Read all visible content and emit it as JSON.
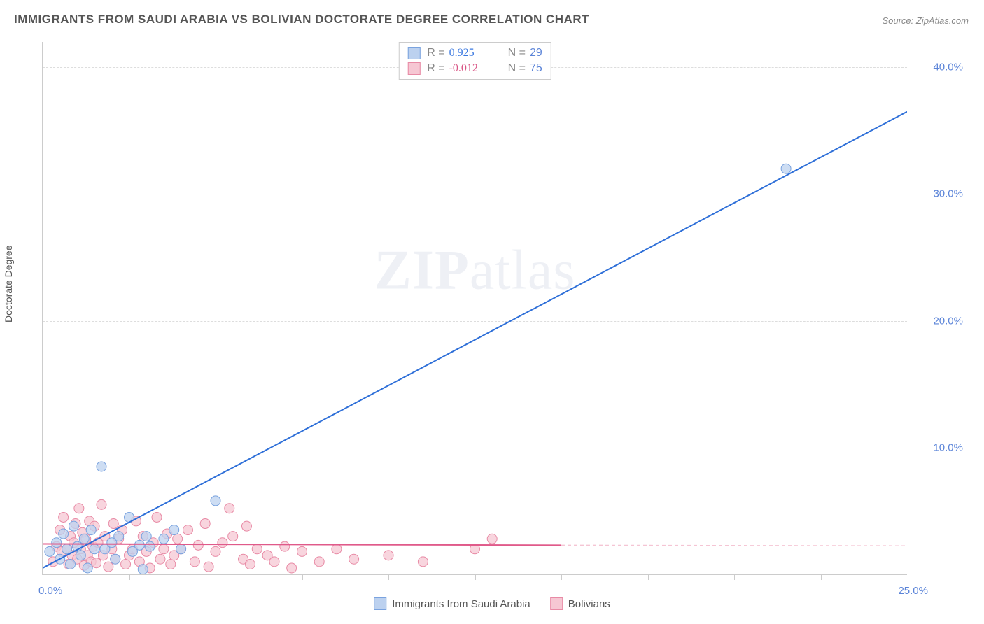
{
  "title": "IMMIGRANTS FROM SAUDI ARABIA VS BOLIVIAN DOCTORATE DEGREE CORRELATION CHART",
  "source_prefix": "Source: ",
  "source_name": "ZipAtlas.com",
  "y_axis_label": "Doctorate Degree",
  "watermark_zip": "ZIP",
  "watermark_atlas": "atlas",
  "chart": {
    "type": "scatter",
    "xlim": [
      0,
      25
    ],
    "ylim": [
      0,
      42
    ],
    "x_unit": "%",
    "y_unit": "%",
    "y_ticks": [
      10.0,
      20.0,
      30.0,
      40.0
    ],
    "x_ticks_minor": [
      2.5,
      5,
      7.5,
      10,
      12.5,
      15,
      17.5,
      20,
      22.5
    ],
    "x_min_label": "0.0%",
    "x_max_label": "25.0%",
    "background_color": "#ffffff",
    "grid_color": "#dddddd",
    "axis_color": "#cccccc",
    "tick_label_color": "#5b84d8",
    "series": [
      {
        "name": "Immigrants from Saudi Arabia",
        "color_fill": "#bcd1ef",
        "color_stroke": "#7aa3df",
        "marker_radius": 7,
        "r_value": 0.925,
        "n_value": 29,
        "r_color": "#3a78e0",
        "trend": {
          "x1": 0,
          "y1": 0.5,
          "x2": 25,
          "y2": 36.5,
          "color": "#2e6fd8",
          "width": 2
        },
        "points": [
          [
            0.2,
            1.8
          ],
          [
            0.4,
            2.5
          ],
          [
            0.5,
            1.2
          ],
          [
            0.6,
            3.2
          ],
          [
            0.7,
            2.0
          ],
          [
            0.8,
            0.8
          ],
          [
            0.9,
            3.8
          ],
          [
            1.0,
            2.2
          ],
          [
            1.1,
            1.5
          ],
          [
            1.2,
            2.8
          ],
          [
            1.3,
            0.5
          ],
          [
            1.4,
            3.5
          ],
          [
            1.5,
            2.0
          ],
          [
            1.7,
            8.5
          ],
          [
            1.8,
            2.0
          ],
          [
            2.0,
            2.5
          ],
          [
            2.1,
            1.2
          ],
          [
            2.2,
            3.0
          ],
          [
            2.5,
            4.5
          ],
          [
            2.6,
            1.8
          ],
          [
            2.8,
            2.3
          ],
          [
            2.9,
            0.4
          ],
          [
            3.0,
            3.0
          ],
          [
            3.1,
            2.2
          ],
          [
            3.5,
            2.8
          ],
          [
            3.8,
            3.5
          ],
          [
            4.0,
            2.0
          ],
          [
            5.0,
            5.8
          ],
          [
            21.5,
            32.0
          ]
        ]
      },
      {
        "name": "Bolivians",
        "color_fill": "#f6c7d3",
        "color_stroke": "#e88aa5",
        "marker_radius": 7,
        "r_value": -0.012,
        "n_value": 75,
        "r_color": "#d95585",
        "trend": {
          "x1": 0,
          "y1": 2.4,
          "x2": 15,
          "y2": 2.3,
          "color": "#e05a8a",
          "width": 2
        },
        "trend_ext": {
          "x1": 15,
          "y1": 2.3,
          "x2": 25,
          "y2": 2.25,
          "color": "#f5c5d4",
          "width": 1.5,
          "dash": "5,4"
        },
        "points": [
          [
            0.3,
            1.0
          ],
          [
            0.4,
            2.2
          ],
          [
            0.5,
            3.5
          ],
          [
            0.55,
            1.8
          ],
          [
            0.6,
            4.5
          ],
          [
            0.7,
            2.0
          ],
          [
            0.75,
            0.8
          ],
          [
            0.8,
            3.0
          ],
          [
            0.85,
            1.5
          ],
          [
            0.9,
            2.5
          ],
          [
            0.95,
            4.0
          ],
          [
            1.0,
            1.2
          ],
          [
            1.05,
            5.2
          ],
          [
            1.1,
            2.0
          ],
          [
            1.15,
            3.3
          ],
          [
            1.2,
            0.7
          ],
          [
            1.25,
            2.8
          ],
          [
            1.3,
            1.5
          ],
          [
            1.35,
            4.2
          ],
          [
            1.4,
            1.0
          ],
          [
            1.45,
            2.2
          ],
          [
            1.5,
            3.8
          ],
          [
            1.55,
            0.9
          ],
          [
            1.6,
            2.5
          ],
          [
            1.7,
            5.5
          ],
          [
            1.75,
            1.5
          ],
          [
            1.8,
            3.0
          ],
          [
            1.9,
            0.6
          ],
          [
            2.0,
            2.0
          ],
          [
            2.05,
            4.0
          ],
          [
            2.1,
            1.2
          ],
          [
            2.2,
            2.8
          ],
          [
            2.3,
            3.5
          ],
          [
            2.4,
            0.8
          ],
          [
            2.5,
            1.5
          ],
          [
            2.6,
            2.0
          ],
          [
            2.7,
            4.2
          ],
          [
            2.8,
            1.0
          ],
          [
            2.9,
            3.0
          ],
          [
            3.0,
            1.8
          ],
          [
            3.1,
            0.5
          ],
          [
            3.2,
            2.5
          ],
          [
            3.3,
            4.5
          ],
          [
            3.4,
            1.2
          ],
          [
            3.5,
            2.0
          ],
          [
            3.6,
            3.2
          ],
          [
            3.7,
            0.8
          ],
          [
            3.8,
            1.5
          ],
          [
            3.9,
            2.8
          ],
          [
            4.0,
            2.0
          ],
          [
            4.2,
            3.5
          ],
          [
            4.4,
            1.0
          ],
          [
            4.5,
            2.3
          ],
          [
            4.7,
            4.0
          ],
          [
            4.8,
            0.6
          ],
          [
            5.0,
            1.8
          ],
          [
            5.2,
            2.5
          ],
          [
            5.4,
            5.2
          ],
          [
            5.5,
            3.0
          ],
          [
            5.8,
            1.2
          ],
          [
            5.9,
            3.8
          ],
          [
            6.0,
            0.8
          ],
          [
            6.2,
            2.0
          ],
          [
            6.5,
            1.5
          ],
          [
            6.7,
            1.0
          ],
          [
            7.0,
            2.2
          ],
          [
            7.2,
            0.5
          ],
          [
            7.5,
            1.8
          ],
          [
            8.0,
            1.0
          ],
          [
            8.5,
            2.0
          ],
          [
            9.0,
            1.2
          ],
          [
            10.0,
            1.5
          ],
          [
            11.0,
            1.0
          ],
          [
            12.5,
            2.0
          ],
          [
            13.0,
            2.8
          ]
        ]
      }
    ]
  },
  "legend": {
    "r_label": "R =",
    "n_label": "N ="
  }
}
